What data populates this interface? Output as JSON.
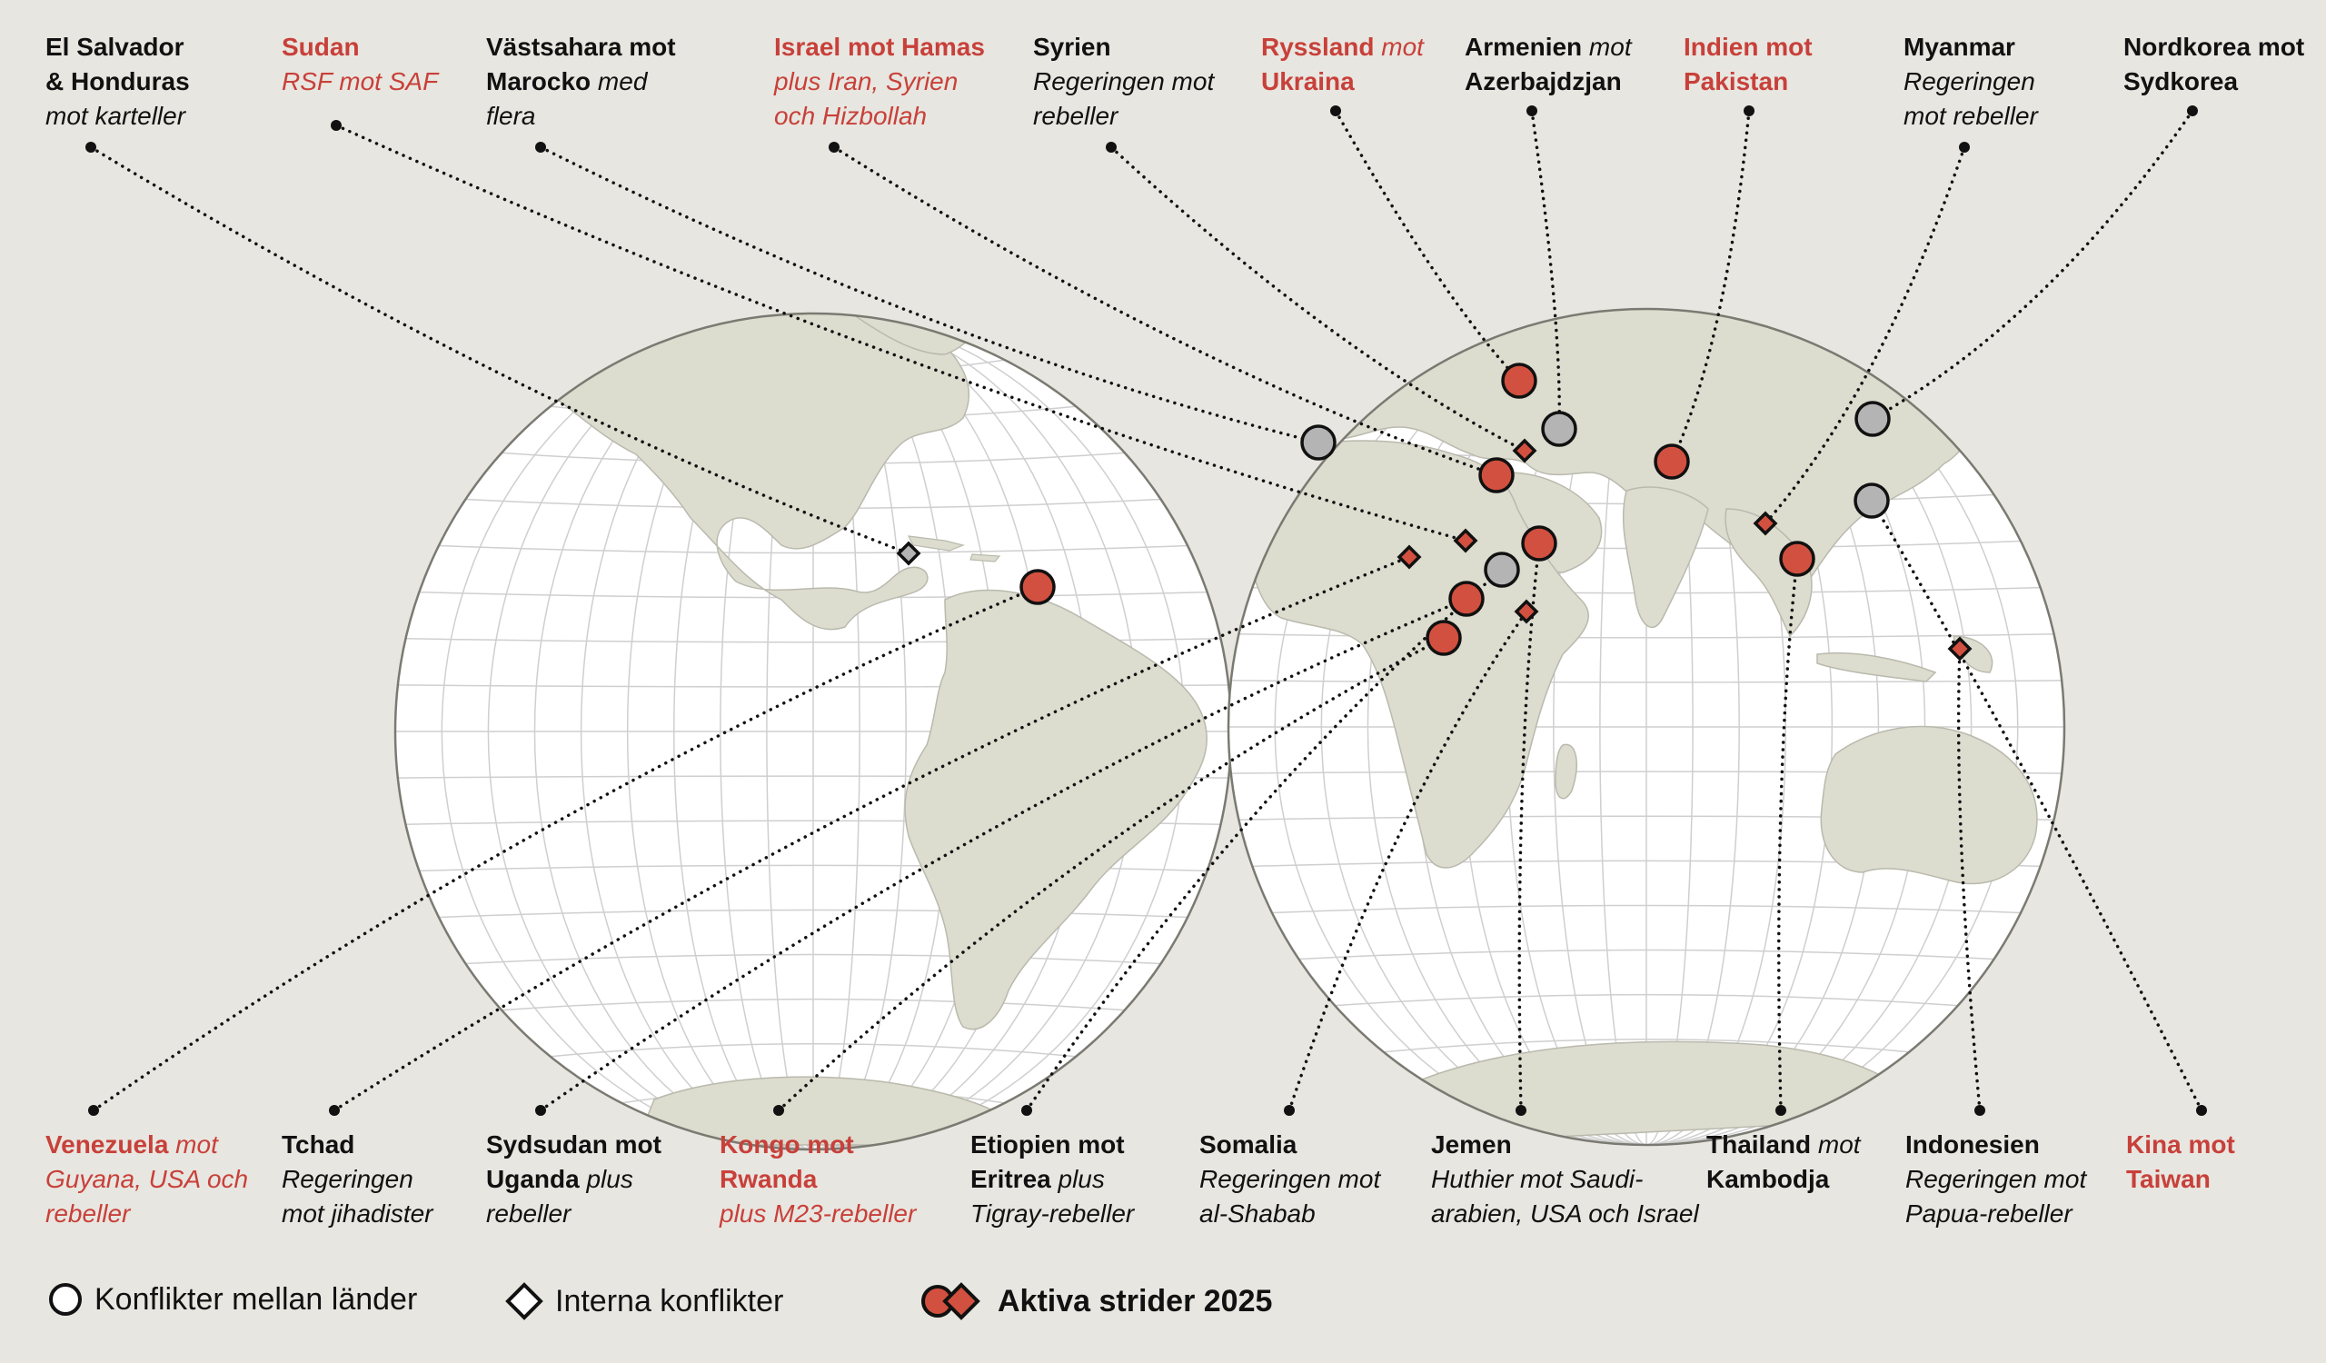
{
  "colors": {
    "active": "#d2503f",
    "inactive": "#b4b4b4",
    "ocean": "#ffffff",
    "land": "#dcdccf",
    "background": "#e8e6e0",
    "text_red": "#c8403a"
  },
  "labels": [
    {
      "id": "el-salvador",
      "lines": [
        {
          "b": "El Salvador"
        },
        {
          "b": "& Honduras"
        },
        {
          "i": "mot karteller"
        }
      ],
      "active": false
    },
    {
      "id": "sudan",
      "lines": [
        {
          "b": "Sudan"
        },
        {
          "i": "RSF mot SAF"
        }
      ],
      "active": true
    },
    {
      "id": "vastsahara",
      "lines": [
        {
          "b": "Västsahara mot"
        },
        {
          "b": "Marocko",
          "i": " med"
        },
        {
          "i": "flera"
        }
      ],
      "active": false
    },
    {
      "id": "israel",
      "lines": [
        {
          "b": "Israel mot Hamas"
        },
        {
          "i": "plus Iran, Syrien"
        },
        {
          "i": "och Hizbollah"
        }
      ],
      "active": true
    },
    {
      "id": "syrien",
      "lines": [
        {
          "b": "Syrien"
        },
        {
          "i": "Regeringen mot"
        },
        {
          "i": "rebeller"
        }
      ],
      "active": false
    },
    {
      "id": "ryssland",
      "lines": [
        {
          "b": "Ryssland",
          "i": " mot"
        },
        {
          "b": "Ukraina"
        }
      ],
      "active": true
    },
    {
      "id": "armenien",
      "lines": [
        {
          "b": "Armenien",
          "i": " mot"
        },
        {
          "b": "Azerbajdzjan"
        }
      ],
      "active": false
    },
    {
      "id": "indien",
      "lines": [
        {
          "b": "Indien mot"
        },
        {
          "b": "Pakistan"
        }
      ],
      "active": true
    },
    {
      "id": "myanmar",
      "lines": [
        {
          "b": "Myanmar"
        },
        {
          "i": "Regeringen"
        },
        {
          "i": "mot rebeller"
        }
      ],
      "active": false
    },
    {
      "id": "nordkorea",
      "lines": [
        {
          "b": "Nordkorea mot"
        },
        {
          "b": "Sydkorea"
        }
      ],
      "active": false
    },
    {
      "id": "venezuela",
      "lines": [
        {
          "b": "Venezuela",
          "i": " mot"
        },
        {
          "i": "Guyana, USA och"
        },
        {
          "i": "rebeller"
        }
      ],
      "active": true
    },
    {
      "id": "tchad",
      "lines": [
        {
          "b": "Tchad"
        },
        {
          "i": "Regeringen"
        },
        {
          "i": "mot jihadister"
        }
      ],
      "active": false
    },
    {
      "id": "sydsudan",
      "lines": [
        {
          "b": "Sydsudan mot"
        },
        {
          "b": "Uganda",
          "i": " plus"
        },
        {
          "i": "rebeller"
        }
      ],
      "active": false
    },
    {
      "id": "kongo",
      "lines": [
        {
          "b": "Kongo mot"
        },
        {
          "b": "Rwanda"
        },
        {
          "i": "plus M23-rebeller"
        }
      ],
      "active": true
    },
    {
      "id": "etiopien",
      "lines": [
        {
          "b": "Etiopien mot"
        },
        {
          "b": "Eritrea",
          "i": " plus"
        },
        {
          "i": "Tigray-rebeller"
        }
      ],
      "active": false
    },
    {
      "id": "somalia",
      "lines": [
        {
          "b": "Somalia"
        },
        {
          "i": "Regeringen mot"
        },
        {
          "i": "al-Shabab"
        }
      ],
      "active": false
    },
    {
      "id": "jemen",
      "lines": [
        {
          "b": "Jemen"
        },
        {
          "i": "Huthier mot Saudi-"
        },
        {
          "i": "arabien, USA och Israel"
        }
      ],
      "active": false
    },
    {
      "id": "thailand",
      "lines": [
        {
          "b": "Thailand",
          "i": " mot"
        },
        {
          "b": "Kambodja"
        }
      ],
      "active": false
    },
    {
      "id": "indonesien",
      "lines": [
        {
          "b": "Indonesien"
        },
        {
          "i": "Regeringen mot"
        },
        {
          "i": "Papua-rebeller"
        }
      ],
      "active": false
    },
    {
      "id": "kina",
      "lines": [
        {
          "b": "Kina mot"
        },
        {
          "b": "Taiwan"
        }
      ],
      "active": true
    }
  ],
  "markers": [
    {
      "id": "el-salvador",
      "shape": "diamond",
      "active": false
    },
    {
      "id": "venezuela",
      "shape": "circle",
      "active": true
    },
    {
      "id": "vastsahara",
      "shape": "circle",
      "active": false
    },
    {
      "id": "ryssland",
      "shape": "circle",
      "active": true
    },
    {
      "id": "armenien",
      "shape": "circle",
      "active": false
    },
    {
      "id": "syrien",
      "shape": "diamond",
      "active": true
    },
    {
      "id": "israel",
      "shape": "circle",
      "active": true
    },
    {
      "id": "indien",
      "shape": "circle",
      "active": true
    },
    {
      "id": "sudan",
      "shape": "diamond",
      "active": true
    },
    {
      "id": "jemen",
      "shape": "circle",
      "active": true
    },
    {
      "id": "tchad",
      "shape": "diamond",
      "active": true
    },
    {
      "id": "etiopien",
      "shape": "circle",
      "active": false
    },
    {
      "id": "sydsudan",
      "shape": "circle",
      "active": true
    },
    {
      "id": "somalia",
      "shape": "diamond",
      "active": true
    },
    {
      "id": "kongo",
      "shape": "circle",
      "active": true
    },
    {
      "id": "myanmar",
      "shape": "diamond",
      "active": true
    },
    {
      "id": "thailand",
      "shape": "circle",
      "active": true
    },
    {
      "id": "nordkorea",
      "shape": "circle",
      "active": false
    },
    {
      "id": "kina",
      "shape": "circle",
      "active": false
    },
    {
      "id": "indonesien",
      "shape": "diamond",
      "active": true
    }
  ],
  "legend": {
    "between_countries": "Konflikter mellan länder",
    "internal": "Interna konflikter",
    "active": "Aktiva strider 2025"
  }
}
